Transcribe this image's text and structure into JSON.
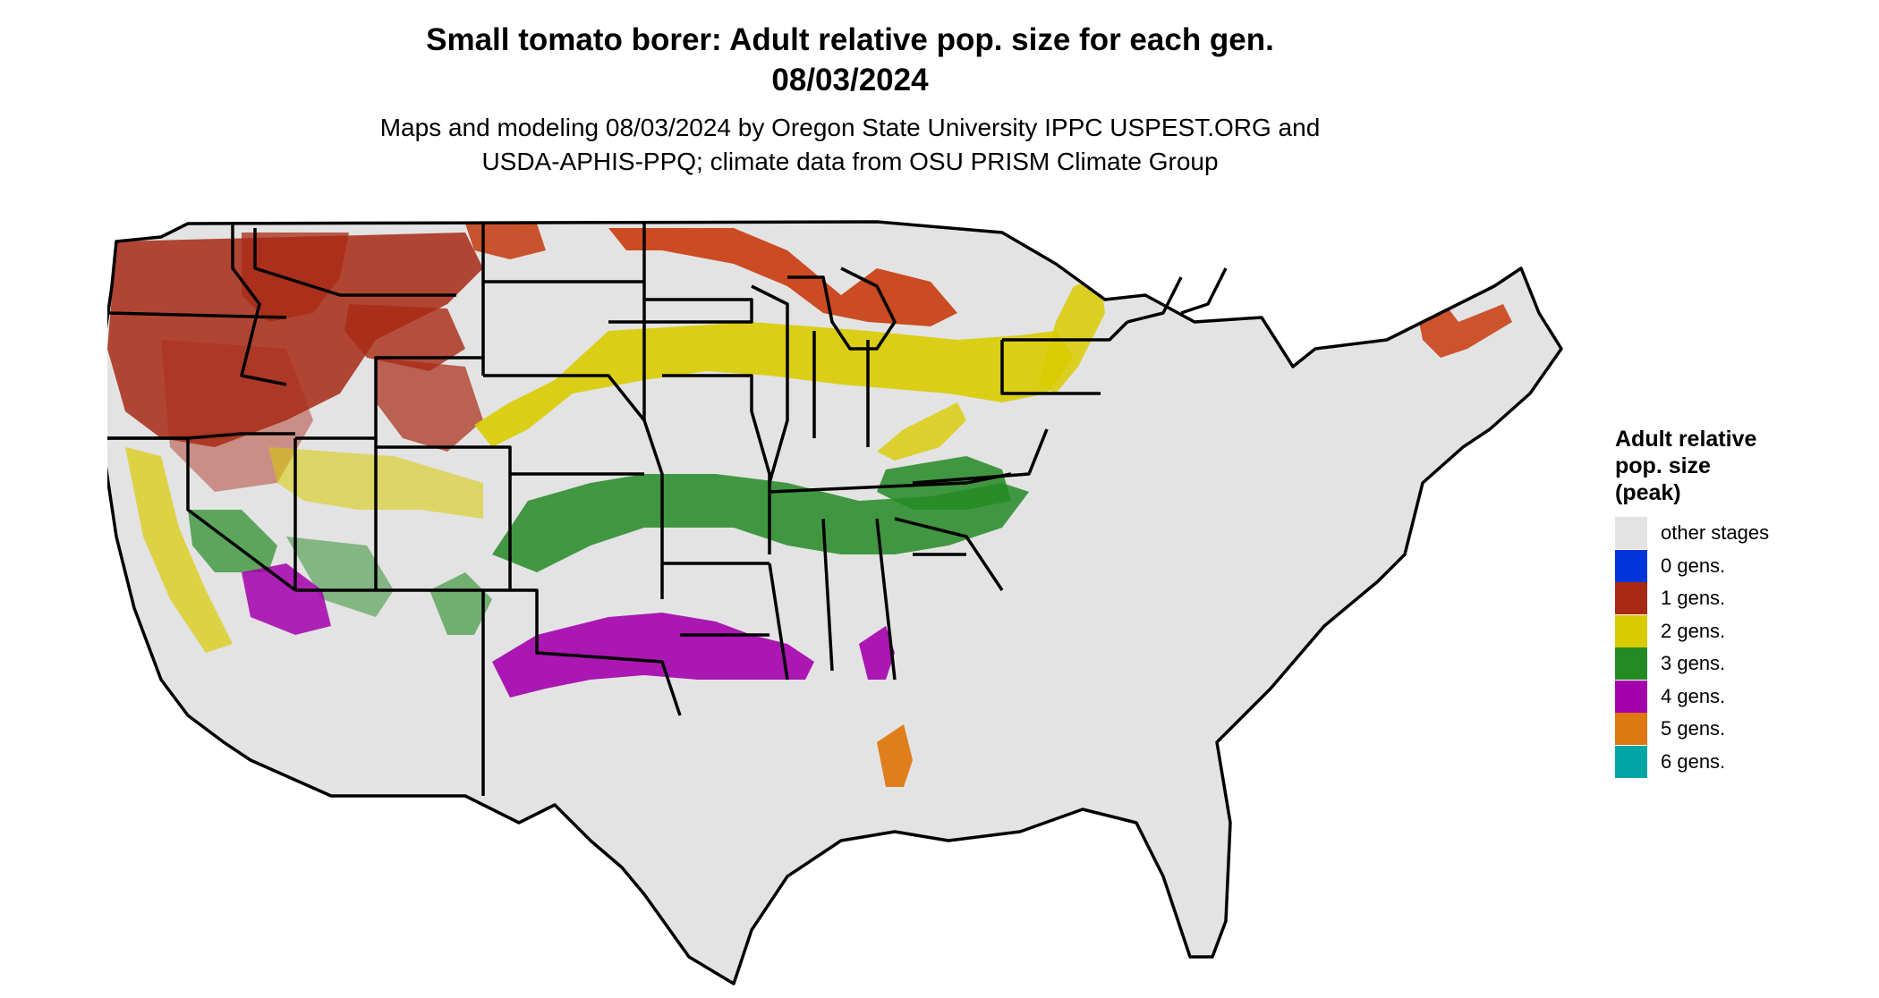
{
  "header": {
    "title_line1": "Small tomato borer: Adult relative pop. size for each gen.",
    "title_line2": "08/03/2024",
    "subtitle_line1": "Maps and modeling 08/03/2024 by Oregon State University IPPC USPEST.ORG and",
    "subtitle_line2": "USDA-APHIS-PPQ; climate data from OSU PRISM Climate Group"
  },
  "legend": {
    "title_line1": "Adult relative",
    "title_line2": "pop. size",
    "title_line3": "(peak)",
    "items": [
      {
        "label": "other stages",
        "color": "#e3e3e3"
      },
      {
        "label": "0 gens.",
        "color": "#0035d9"
      },
      {
        "label": "1 gens.",
        "color": "#a82914"
      },
      {
        "label": "2 gens.",
        "color": "#d8cb00"
      },
      {
        "label": "3 gens.",
        "color": "#248a24"
      },
      {
        "label": "4 gens.",
        "color": "#a300ad"
      },
      {
        "label": "5 gens.",
        "color": "#de7810"
      },
      {
        "label": "6 gens.",
        "color": "#00a5a5"
      }
    ]
  },
  "map": {
    "land_color": "#e3e3e3",
    "border_color": "#000000",
    "zones": [
      {
        "name": "pacific-northwest-1-gen",
        "gens": 1,
        "color": "#a82914"
      },
      {
        "name": "northern-plains-1-gen",
        "gens": 1,
        "color": "#a82914"
      },
      {
        "name": "upper-great-lakes-1-gen",
        "gens": 1,
        "color": "#c83a0c"
      },
      {
        "name": "central-band-2-gens",
        "gens": 2,
        "color": "#d8cb00"
      },
      {
        "name": "southern-band-3-gens",
        "gens": 3,
        "color": "#248a24"
      },
      {
        "name": "gulf-coast-4-gens",
        "gens": 4,
        "color": "#a300ad"
      },
      {
        "name": "southwest-desert-4-gens",
        "gens": 4,
        "color": "#a300ad"
      },
      {
        "name": "south-florida-5-gens",
        "gens": 5,
        "color": "#de7810"
      }
    ]
  }
}
